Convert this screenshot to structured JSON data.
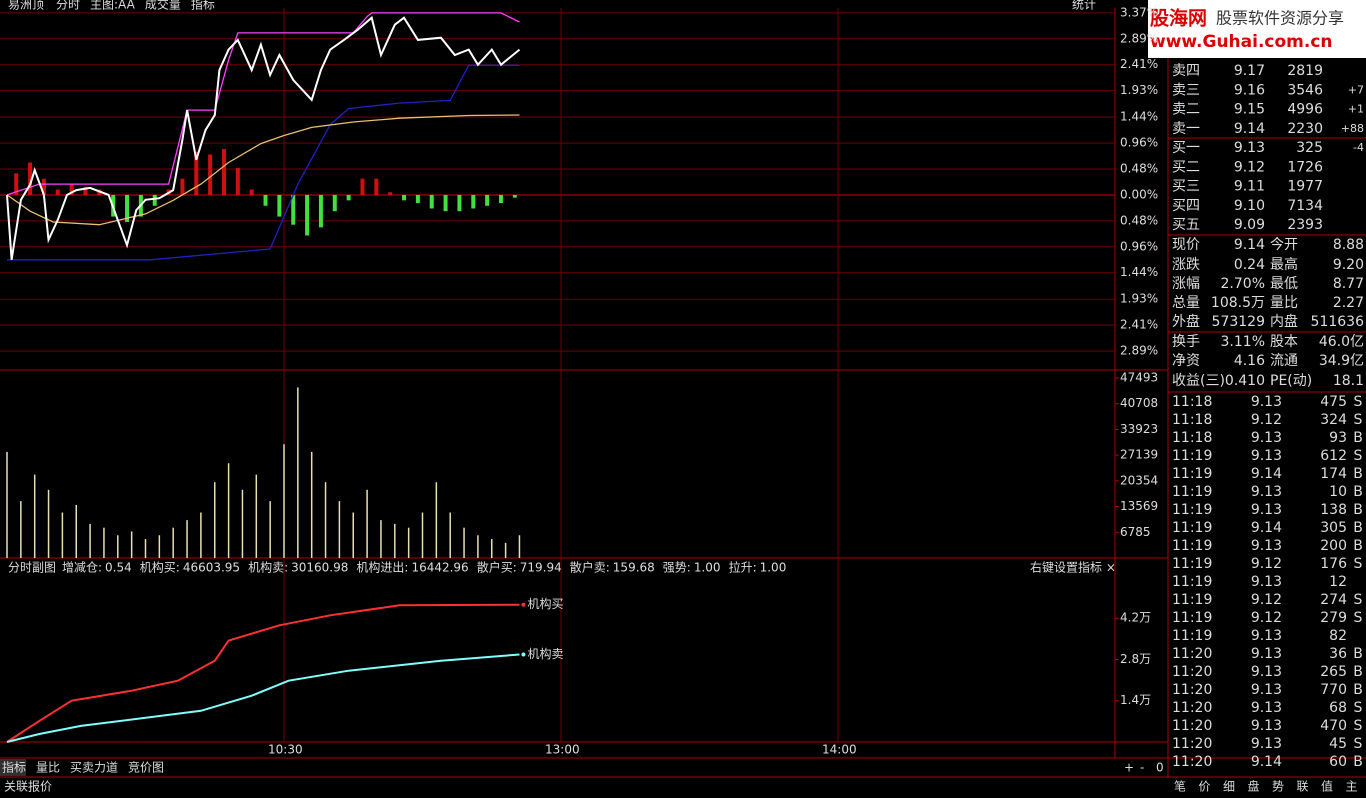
{
  "header": {
    "title": "易洲顶",
    "tabs": [
      "分时",
      "主图:AA",
      "成交量",
      "指标"
    ],
    "stat": "统计"
  },
  "watermark": {
    "brand": "股海网",
    "slogan": "股票软件资源分享",
    "url": "www.Guhai.com.cn"
  },
  "chart_data": [
    {
      "type": "line",
      "xlim": [
        0,
        240
      ],
      "ylim": [
        -3.24,
        3.46
      ],
      "xticks": [
        {
          "value": 60,
          "label": "10:30"
        },
        {
          "value": 120,
          "label": "13:00"
        },
        {
          "value": 180,
          "label": "14:00"
        }
      ],
      "yticks": [
        {
          "value": 3.37,
          "label": "3.37%"
        },
        {
          "value": 2.89,
          "label": "2.89%"
        },
        {
          "value": 2.41,
          "label": "2.41%"
        },
        {
          "value": 1.93,
          "label": "1.93%"
        },
        {
          "value": 1.44,
          "label": "1.44%"
        },
        {
          "value": 0.96,
          "label": "0.96%"
        },
        {
          "value": 0.48,
          "label": "0.48%"
        },
        {
          "value": 0,
          "label": "0.00%"
        },
        {
          "value": -0.48,
          "label": "0.48%"
        },
        {
          "value": -0.96,
          "label": "0.96%"
        },
        {
          "value": -1.44,
          "label": "1.44%"
        },
        {
          "value": -1.93,
          "label": "1.93%"
        },
        {
          "value": -2.41,
          "label": "2.41%"
        },
        {
          "value": -2.89,
          "label": "2.89%"
        }
      ],
      "grid": true,
      "bars": {
        "x": [
          2,
          5,
          8,
          11,
          14,
          17,
          20,
          23,
          26,
          29,
          32,
          35,
          38,
          41,
          44,
          47,
          50,
          53,
          56,
          59,
          62,
          65,
          68,
          71,
          74,
          77,
          80,
          83,
          86,
          89,
          92,
          95,
          98,
          101,
          104,
          107,
          110
        ],
        "values": [
          0.4,
          0.6,
          0.3,
          0.1,
          0.2,
          0.15,
          0.1,
          -0.4,
          -0.5,
          -0.4,
          -0.2,
          0.1,
          0.3,
          0.8,
          0.75,
          0.85,
          0.5,
          0.1,
          -0.2,
          -0.4,
          -0.55,
          -0.75,
          -0.6,
          -0.3,
          -0.1,
          0.3,
          0.3,
          0.05,
          -0.1,
          -0.15,
          -0.25,
          -0.3,
          -0.3,
          -0.25,
          -0.2,
          -0.15,
          -0.05
        ]
      },
      "series": [
        {
          "color": "#2020c8",
          "x": [
            0,
            31,
            57,
            63,
            70,
            74,
            85,
            96,
            100,
            111
          ],
          "values": [
            -1.2,
            -1.2,
            -1.0,
            0.2,
            1.3,
            1.6,
            1.7,
            1.75,
            2.4,
            2.4
          ]
        },
        {
          "color": "#ff40ff",
          "x": [
            0,
            7,
            35,
            39,
            45,
            48,
            50,
            75,
            78,
            79,
            107,
            111
          ],
          "values": [
            0,
            0.2,
            0.2,
            1.57,
            1.57,
            2.5,
            3.0,
            3.0,
            3.3,
            3.37,
            3.37,
            3.2
          ]
        },
        {
          "color": "#e8c070",
          "x": [
            0,
            5,
            10,
            20,
            30,
            36,
            42,
            48,
            55,
            60,
            66,
            75,
            85,
            100,
            111
          ],
          "values": [
            0,
            -0.3,
            -0.5,
            -0.55,
            -0.35,
            -0.1,
            0.2,
            0.6,
            0.95,
            1.1,
            1.25,
            1.35,
            1.42,
            1.47,
            1.48
          ]
        },
        {
          "color": "#ffffff",
          "x": [
            0,
            1,
            3,
            5,
            6,
            8,
            9,
            11,
            13,
            15,
            18,
            22,
            26,
            28,
            30,
            33,
            36,
            38,
            39,
            41,
            43,
            45,
            46,
            48,
            50,
            53,
            55,
            57,
            59,
            62,
            66,
            68,
            70,
            73,
            76,
            79,
            81,
            84,
            86,
            89,
            94,
            97,
            100,
            102,
            105,
            107,
            111
          ],
          "values": [
            0,
            -1.2,
            -0.09,
            0.19,
            0.46,
            0,
            -0.83,
            -0.46,
            0,
            0.09,
            0.13,
            0,
            -0.93,
            -0.28,
            -0.09,
            -0.06,
            0.09,
            1.02,
            1.57,
            0.65,
            1.2,
            1.48,
            2.31,
            2.69,
            2.87,
            2.31,
            2.78,
            2.22,
            2.59,
            2.13,
            1.76,
            2.31,
            2.69,
            2.87,
            3.06,
            3.28,
            2.59,
            3.15,
            3.28,
            2.87,
            2.91,
            2.59,
            2.69,
            2.41,
            2.69,
            2.41,
            2.69
          ]
        }
      ]
    },
    {
      "type": "bar",
      "ylim": [
        0,
        49600
      ],
      "color": "#e8e0b0",
      "yticks": [
        47493,
        40708,
        33923,
        27139,
        20354,
        13569,
        6785
      ],
      "x": [
        0,
        3,
        6,
        9,
        12,
        15,
        18,
        21,
        24,
        27,
        30,
        33,
        36,
        39,
        42,
        45,
        48,
        51,
        54,
        57,
        60,
        63,
        66,
        69,
        72,
        75,
        78,
        81,
        84,
        87,
        90,
        93,
        96,
        99,
        102,
        105,
        108,
        111
      ],
      "values": [
        28000,
        15000,
        22000,
        18000,
        12000,
        14000,
        9000,
        8000,
        6000,
        7000,
        5000,
        6000,
        8000,
        10000,
        12000,
        20000,
        25000,
        18000,
        22000,
        15000,
        30000,
        45000,
        28000,
        20000,
        15000,
        12000,
        18000,
        10000,
        9000,
        8000,
        12000,
        20000,
        12000,
        8000,
        6000,
        5000,
        4000,
        6000
      ]
    },
    {
      "type": "line",
      "ylim": [
        0,
        55660
      ],
      "yticks": [
        {
          "value": 42000,
          "label": "4.2万"
        },
        {
          "value": 28000,
          "label": "2.8万"
        },
        {
          "value": 14000,
          "label": "1.4万"
        }
      ],
      "title": "分时副图",
      "items": [
        {
          "label": "增减仓:",
          "value": "0.54",
          "color": "#ffffff"
        },
        {
          "label": "机构买:",
          "value": "46603.95",
          "color": "#ff4040"
        },
        {
          "label": "机构卖:",
          "value": "30160.98",
          "color": "#ffffff"
        },
        {
          "label": "机构进出:",
          "value": "16442.96",
          "color": "#40ff40"
        },
        {
          "label": "散户买:",
          "value": "719.94",
          "color": "#ff6060"
        },
        {
          "label": "散户卖:",
          "value": "159.68",
          "color": "#40ff40"
        },
        {
          "label": "强势:",
          "value": "1.00",
          "color": "#ffffff"
        },
        {
          "label": "拉升:",
          "value": "1.00",
          "color": "#ffffff"
        }
      ],
      "setting": "右键设置指标 ×",
      "series": [
        {
          "name": "机构买",
          "color": "#ff3030",
          "x": [
            0,
            7,
            14,
            27,
            37,
            45,
            48,
            59,
            70,
            85,
            111
          ],
          "values": [
            0,
            7170,
            14000,
            17400,
            20800,
            27600,
            34400,
            39600,
            43000,
            46400,
            46600
          ]
        },
        {
          "name": "机构卖",
          "color": "#80ffff",
          "x": [
            0,
            7,
            16,
            42,
            53,
            61,
            74,
            94,
            111
          ],
          "values": [
            0,
            2700,
            5460,
            10600,
            15700,
            20800,
            24200,
            27600,
            29700
          ]
        }
      ]
    }
  ],
  "order_book": {
    "asks": [
      {
        "label": "卖四",
        "price": "9.17",
        "volume": "2819"
      },
      {
        "label": "卖三",
        "price": "9.16",
        "volume": "3546",
        "change": "+7"
      },
      {
        "label": "卖二",
        "price": "9.15",
        "volume": "4996",
        "change": "+1"
      },
      {
        "label": "卖一",
        "price": "9.14",
        "volume": "2230",
        "change": "+88"
      }
    ],
    "bids": [
      {
        "label": "买一",
        "price": "9.13",
        "volume": "325",
        "change": "-4"
      },
      {
        "label": "买二",
        "price": "9.12",
        "volume": "1726"
      },
      {
        "label": "买三",
        "price": "9.11",
        "volume": "1977"
      },
      {
        "label": "买四",
        "price": "9.10",
        "volume": "7134"
      },
      {
        "label": "买五",
        "price": "9.09",
        "volume": "2393"
      }
    ]
  },
  "stats": [
    [
      {
        "label": "现价",
        "value": "9.14",
        "color": "#ff5050"
      },
      {
        "label": "今开",
        "value": "8.88",
        "color": "#40ff40"
      }
    ],
    [
      {
        "label": "涨跌",
        "value": "0.24",
        "color": "#ff5050"
      },
      {
        "label": "最高",
        "value": "9.20",
        "color": "#ff5050"
      }
    ],
    [
      {
        "label": "涨幅",
        "value": "2.70%",
        "color": "#ff5050"
      },
      {
        "label": "最低",
        "value": "8.77",
        "color": "#40ff40"
      }
    ],
    [
      {
        "label": "总量",
        "value": "108.5万",
        "color": "#e8e8a0"
      },
      {
        "label": "量比",
        "value": "2.27",
        "color": "#ff5050"
      }
    ],
    [
      {
        "label": "外盘",
        "value": "573129",
        "color": "#ff5050"
      },
      {
        "label": "内盘",
        "value": "511636",
        "color": "#40ff40"
      }
    ],
    [
      {
        "label": "换手",
        "value": "3.11%",
        "color": "#ffffff"
      },
      {
        "label": "股本",
        "value": "46.0亿",
        "color": "#ffffff"
      }
    ],
    [
      {
        "label": "净资",
        "value": "4.16",
        "color": "#ffffff"
      },
      {
        "label": "流通",
        "value": "34.9亿",
        "color": "#ffffff"
      }
    ],
    [
      {
        "label": "收益(三)",
        "value": "0.410",
        "color": "#ffffff"
      },
      {
        "label": "PE(动)",
        "value": "18.1",
        "color": "#ffffff"
      }
    ]
  ],
  "trades": [
    [
      "11:18",
      "9.13",
      "475",
      "S"
    ],
    [
      "11:18",
      "9.12",
      "324",
      "S"
    ],
    [
      "11:18",
      "9.13",
      "93",
      "B"
    ],
    [
      "11:19",
      "9.13",
      "612",
      "S"
    ],
    [
      "11:19",
      "9.14",
      "174",
      "B"
    ],
    [
      "11:19",
      "9.13",
      "10",
      "B"
    ],
    [
      "11:19",
      "9.13",
      "138",
      "B"
    ],
    [
      "11:19",
      "9.14",
      "305",
      "B"
    ],
    [
      "11:19",
      "9.13",
      "200",
      "B"
    ],
    [
      "11:19",
      "9.12",
      "176",
      "S"
    ],
    [
      "11:19",
      "9.13",
      "12"
    ],
    [
      "11:19",
      "9.12",
      "274",
      "S"
    ],
    [
      "11:19",
      "9.12",
      "279",
      "S"
    ],
    [
      "11:19",
      "9.13",
      "82"
    ],
    [
      "11:20",
      "9.13",
      "36",
      "B"
    ],
    [
      "11:20",
      "9.13",
      "265",
      "B"
    ],
    [
      "11:20",
      "9.13",
      "770",
      "B"
    ],
    [
      "11:20",
      "9.13",
      "68",
      "S"
    ],
    [
      "11:20",
      "9.13",
      "470",
      "S"
    ],
    [
      "11:20",
      "9.13",
      "45",
      "S"
    ],
    [
      "11:20",
      "9.14",
      "60",
      "B"
    ]
  ],
  "bottom_tabs": [
    "指标",
    "量比",
    "买卖力道",
    "竞价图"
  ],
  "zoom": [
    "+",
    "-",
    "0"
  ],
  "footer": "关联报价",
  "panel_tabs": [
    "笔",
    "价",
    "细",
    "盘",
    "势",
    "联",
    "值",
    "主"
  ]
}
